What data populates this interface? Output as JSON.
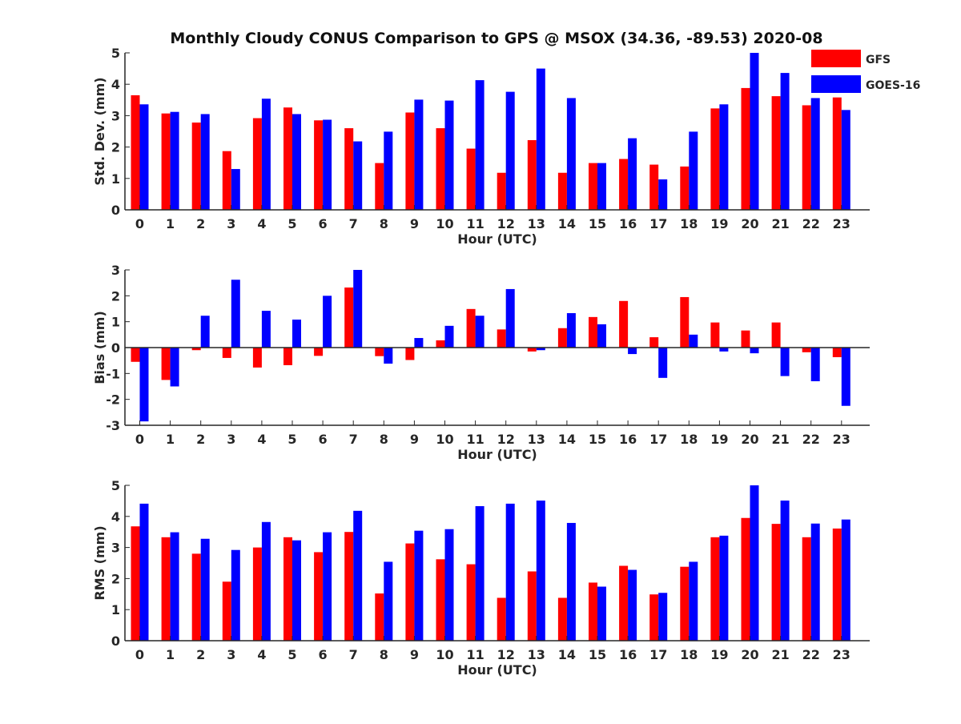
{
  "title": "Monthly Cloudy CONUS Comparison to GPS @ MSOX (34.36, -89.53) 2020-08",
  "colors": {
    "GFS": "#ff0000",
    "GOES-16": "#0000ff",
    "axis": "#262626"
  },
  "legend": {
    "placement": "top-right",
    "entries": [
      "GFS",
      "GOES-16"
    ]
  },
  "chart_data": [
    {
      "type": "bar",
      "xlabel": "Hour (UTC)",
      "ylabel": "Std. Dev. (mm)",
      "categories": [
        "0",
        "1",
        "2",
        "3",
        "4",
        "5",
        "6",
        "7",
        "8",
        "9",
        "10",
        "11",
        "12",
        "13",
        "14",
        "15",
        "16",
        "17",
        "18",
        "19",
        "20",
        "21",
        "22",
        "23"
      ],
      "ylim": [
        0,
        5
      ],
      "yticks": [
        0,
        1,
        2,
        3,
        4,
        5
      ],
      "grid": false,
      "series": [
        {
          "name": "GFS",
          "values": [
            3.65,
            3.07,
            2.78,
            1.87,
            2.92,
            3.26,
            2.85,
            2.6,
            1.49,
            3.1,
            2.6,
            1.95,
            1.18,
            2.22,
            1.18,
            1.49,
            1.62,
            1.44,
            1.38,
            3.23,
            3.88,
            3.62,
            3.33,
            3.58
          ]
        },
        {
          "name": "GOES-16",
          "values": [
            3.36,
            3.12,
            3.05,
            1.3,
            3.54,
            3.05,
            2.87,
            2.18,
            2.49,
            3.51,
            3.48,
            4.13,
            3.76,
            4.5,
            3.56,
            1.49,
            2.28,
            0.97,
            2.49,
            3.36,
            5.0,
            4.36,
            3.56,
            3.18
          ]
        }
      ]
    },
    {
      "type": "bar",
      "xlabel": "Hour (UTC)",
      "ylabel": "Bias (mm)",
      "categories": [
        "0",
        "1",
        "2",
        "3",
        "4",
        "5",
        "6",
        "7",
        "8",
        "9",
        "10",
        "11",
        "12",
        "13",
        "14",
        "15",
        "16",
        "17",
        "18",
        "19",
        "20",
        "21",
        "22",
        "23"
      ],
      "ylim": [
        -3,
        3
      ],
      "yticks": [
        -3,
        -2,
        -1,
        0,
        1,
        2,
        3
      ],
      "grid": false,
      "series": [
        {
          "name": "GFS",
          "values": [
            -0.55,
            -1.25,
            -0.1,
            -0.4,
            -0.77,
            -0.68,
            -0.32,
            2.32,
            -0.33,
            -0.48,
            0.28,
            1.49,
            0.7,
            -0.15,
            0.75,
            1.18,
            1.8,
            0.4,
            1.95,
            0.97,
            0.66,
            0.97,
            -0.18,
            -0.37
          ]
        },
        {
          "name": "GOES-16",
          "values": [
            -2.85,
            -1.5,
            1.23,
            2.62,
            1.42,
            1.08,
            2.0,
            3.0,
            -0.62,
            0.37,
            0.84,
            1.23,
            2.26,
            -0.1,
            1.33,
            0.9,
            -0.25,
            -1.17,
            0.5,
            -0.15,
            -0.22,
            -1.1,
            -1.3,
            -2.25
          ]
        }
      ]
    },
    {
      "type": "bar",
      "xlabel": "Hour (UTC)",
      "ylabel": "RMS (mm)",
      "categories": [
        "0",
        "1",
        "2",
        "3",
        "4",
        "5",
        "6",
        "7",
        "8",
        "9",
        "10",
        "11",
        "12",
        "13",
        "14",
        "15",
        "16",
        "17",
        "18",
        "19",
        "20",
        "21",
        "22",
        "23"
      ],
      "ylim": [
        0,
        5
      ],
      "yticks": [
        0,
        1,
        2,
        3,
        4,
        5
      ],
      "grid": false,
      "series": [
        {
          "name": "GFS",
          "values": [
            3.68,
            3.33,
            2.8,
            1.9,
            3.0,
            3.33,
            2.85,
            3.5,
            1.52,
            3.13,
            2.62,
            2.46,
            1.38,
            2.23,
            1.38,
            1.87,
            2.41,
            1.49,
            2.38,
            3.33,
            3.95,
            3.76,
            3.33,
            3.61
          ]
        },
        {
          "name": "GOES-16",
          "values": [
            4.41,
            3.49,
            3.28,
            2.92,
            3.82,
            3.23,
            3.49,
            4.18,
            2.54,
            3.54,
            3.59,
            4.33,
            4.41,
            4.51,
            3.79,
            1.74,
            2.28,
            1.54,
            2.54,
            3.38,
            5.0,
            4.51,
            3.77,
            3.9
          ]
        }
      ]
    }
  ]
}
